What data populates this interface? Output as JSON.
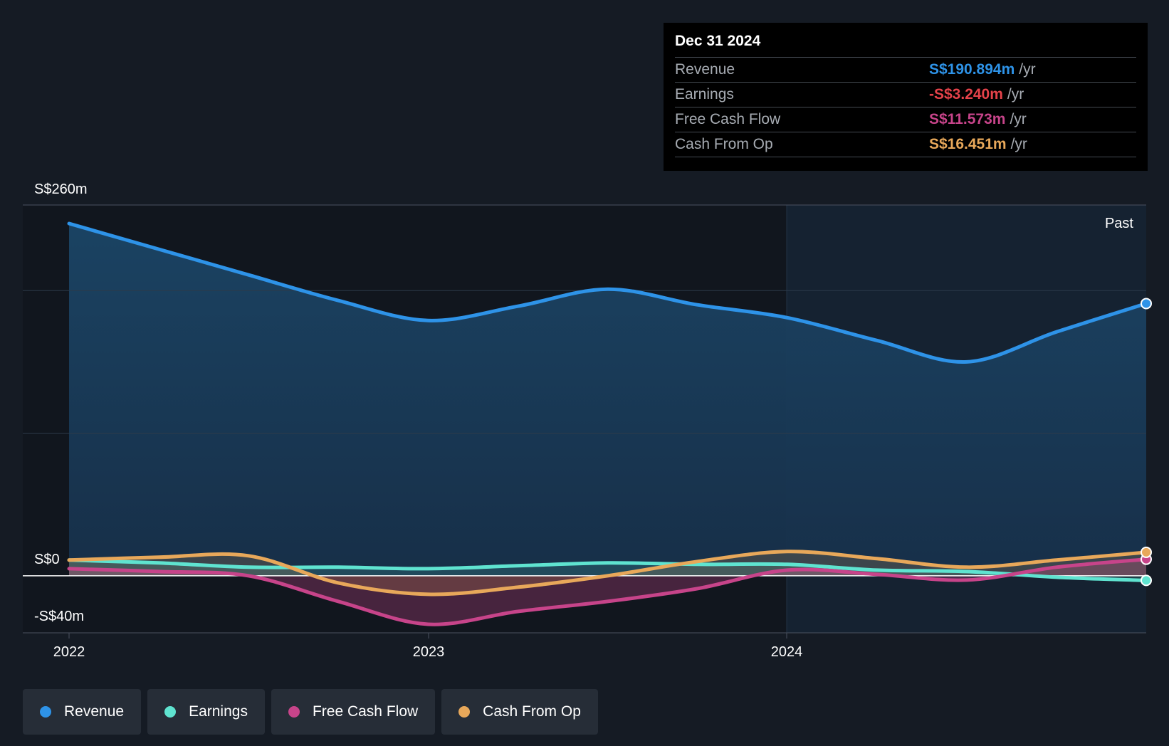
{
  "chart_data": {
    "type": "area",
    "title": "",
    "x_ticks": [
      "2022",
      "2023",
      "2024"
    ],
    "y_ticks": [
      "S$260m",
      "S$0",
      "-S$40m"
    ],
    "ylim": [
      -40,
      260
    ],
    "past_label": "Past",
    "x": [
      2022.0,
      2022.25,
      2022.5,
      2022.75,
      2023.0,
      2023.25,
      2023.5,
      2023.75,
      2024.0,
      2024.25,
      2024.5,
      2024.75,
      2025.0
    ],
    "series": [
      {
        "name": "Revenue",
        "color": "#2e93e8",
        "values": [
          247,
          229,
          211,
          193,
          179,
          189,
          201,
          190,
          181,
          165,
          150,
          171,
          190.894
        ]
      },
      {
        "name": "Earnings",
        "color": "#5fe3d0",
        "values": [
          11,
          9,
          6,
          6,
          5,
          7,
          9,
          8,
          8,
          4,
          3,
          -1,
          -3.24
        ]
      },
      {
        "name": "Free Cash Flow",
        "color": "#c7448a",
        "values": [
          5,
          3,
          0,
          -18,
          -34,
          -25,
          -18,
          -9,
          4,
          1,
          -3,
          6,
          11.573
        ]
      },
      {
        "name": "Cash From Op",
        "color": "#e8a85a",
        "values": [
          11,
          13,
          14,
          -5,
          -13,
          -8,
          0,
          10,
          17,
          12,
          6,
          11,
          16.451
        ]
      }
    ]
  },
  "tooltip": {
    "date": "Dec 31 2024",
    "rows": [
      {
        "name": "Revenue",
        "value": "S$190.894m",
        "unit": "/yr",
        "color": "#2e93e8"
      },
      {
        "name": "Earnings",
        "value": "-S$3.240m",
        "unit": "/yr",
        "color": "#e5424a"
      },
      {
        "name": "Free Cash Flow",
        "value": "S$11.573m",
        "unit": "/yr",
        "color": "#c7448a"
      },
      {
        "name": "Cash From Op",
        "value": "S$16.451m",
        "unit": "/yr",
        "color": "#e8a85a"
      }
    ]
  },
  "legend": [
    {
      "label": "Revenue",
      "color": "#2e93e8"
    },
    {
      "label": "Earnings",
      "color": "#5fe3d0"
    },
    {
      "label": "Free Cash Flow",
      "color": "#c7448a"
    },
    {
      "label": "Cash From Op",
      "color": "#e8a85a"
    }
  ]
}
